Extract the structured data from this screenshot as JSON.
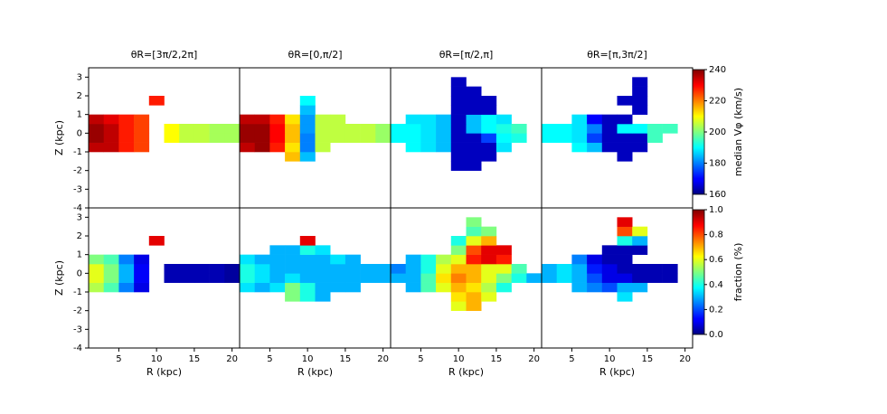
{
  "chart_data": [
    {
      "type": "heatmap",
      "title": "θR=[3π/2,2π]",
      "ylabel": "Z (kpc)",
      "xlim": [
        1,
        21
      ],
      "ylim": [
        -4,
        3.5
      ],
      "yticks": [
        -4,
        -3,
        -2,
        -1,
        0,
        1,
        2,
        3
      ],
      "r_edges": [
        1,
        3,
        5,
        7,
        9,
        11,
        13,
        15,
        17,
        19,
        21
      ],
      "z_edges": [
        -2,
        -1.5,
        -1,
        -0.5,
        0,
        0.5,
        1,
        1.5,
        2,
        2.5,
        3
      ],
      "values": [
        [
          null,
          null,
          null,
          null,
          null,
          null,
          null,
          null,
          null,
          null
        ],
        [
          null,
          null,
          null,
          null,
          null,
          null,
          null,
          null,
          null,
          null
        ],
        [
          235,
          235,
          228,
          225,
          null,
          null,
          null,
          null,
          null,
          null
        ],
        [
          238,
          235,
          228,
          225,
          null,
          210,
          205,
          205,
          203,
          203
        ],
        [
          238,
          235,
          228,
          225,
          null,
          210,
          205,
          205,
          203,
          203
        ],
        [
          235,
          232,
          228,
          225,
          null,
          null,
          null,
          null,
          null,
          null
        ],
        [
          null,
          null,
          null,
          null,
          null,
          null,
          null,
          null,
          null,
          null
        ],
        [
          null,
          null,
          null,
          null,
          228,
          null,
          null,
          null,
          null,
          null
        ],
        [
          null,
          null,
          null,
          null,
          null,
          null,
          null,
          null,
          null,
          null
        ],
        [
          null,
          null,
          null,
          null,
          null,
          null,
          null,
          null,
          null,
          null
        ]
      ]
    },
    {
      "type": "heatmap",
      "title": "θR=[0,π/2]",
      "xlim": [
        1,
        21
      ],
      "ylim": [
        -4,
        3.5
      ],
      "r_edges": [
        1,
        3,
        5,
        7,
        9,
        11,
        13,
        15,
        17,
        19,
        21
      ],
      "z_edges": [
        -2,
        -1.5,
        -1,
        -0.5,
        0,
        0.5,
        1,
        1.5,
        2,
        2.5,
        3
      ],
      "values": [
        [
          null,
          null,
          null,
          null,
          null,
          null,
          null,
          null,
          null,
          null
        ],
        [
          null,
          null,
          null,
          215,
          185,
          null,
          null,
          null,
          null,
          null
        ],
        [
          235,
          238,
          228,
          212,
          180,
          205,
          null,
          null,
          null,
          null
        ],
        [
          238,
          238,
          230,
          215,
          180,
          205,
          205,
          205,
          205,
          202
        ],
        [
          238,
          238,
          230,
          215,
          182,
          205,
          205,
          205,
          205,
          202
        ],
        [
          235,
          235,
          228,
          212,
          182,
          205,
          205,
          null,
          null,
          null
        ],
        [
          null,
          null,
          null,
          null,
          185,
          null,
          null,
          null,
          null,
          null
        ],
        [
          null,
          null,
          null,
          null,
          190,
          null,
          null,
          null,
          null,
          null
        ],
        [
          null,
          null,
          null,
          null,
          null,
          null,
          null,
          null,
          null,
          null
        ],
        [
          null,
          null,
          null,
          null,
          null,
          null,
          null,
          null,
          null,
          null
        ]
      ]
    },
    {
      "type": "heatmap",
      "title": "θR=[π/2,π]",
      "xlim": [
        1,
        21
      ],
      "ylim": [
        -4,
        3.5
      ],
      "r_edges": [
        1,
        3,
        5,
        7,
        9,
        11,
        13,
        15,
        17,
        19,
        21
      ],
      "z_edges": [
        -2,
        -1.5,
        -1,
        -0.5,
        0,
        0.5,
        1,
        1.5,
        2,
        2.5,
        3
      ],
      "values": [
        [
          null,
          null,
          null,
          null,
          165,
          165,
          null,
          null,
          null,
          null
        ],
        [
          null,
          null,
          null,
          null,
          165,
          165,
          165,
          null,
          null,
          null
        ],
        [
          null,
          190,
          188,
          185,
          165,
          165,
          165,
          188,
          null,
          null
        ],
        [
          190,
          190,
          188,
          185,
          165,
          165,
          175,
          190,
          192,
          null
        ],
        [
          190,
          190,
          188,
          185,
          165,
          185,
          190,
          192,
          195,
          null
        ],
        [
          null,
          188,
          188,
          185,
          165,
          185,
          190,
          188,
          null,
          null
        ],
        [
          null,
          null,
          null,
          null,
          165,
          165,
          165,
          null,
          null,
          null
        ],
        [
          null,
          null,
          null,
          null,
          165,
          165,
          165,
          null,
          null,
          null
        ],
        [
          null,
          null,
          null,
          null,
          165,
          165,
          null,
          null,
          null,
          null
        ],
        [
          null,
          null,
          null,
          null,
          165,
          null,
          null,
          null,
          null,
          null
        ]
      ]
    },
    {
      "type": "heatmap",
      "title": "θR=[π,3π/2]",
      "xlim": [
        1,
        21
      ],
      "ylim": [
        -4,
        3.5
      ],
      "r_edges": [
        1,
        3,
        5,
        7,
        9,
        11,
        13,
        15,
        17,
        19,
        21
      ],
      "z_edges": [
        -2,
        -1.5,
        -1,
        -0.5,
        0,
        0.5,
        1,
        1.5,
        2,
        2.5,
        3
      ],
      "values": [
        [
          null,
          null,
          null,
          null,
          null,
          null,
          null,
          null,
          null,
          null
        ],
        [
          null,
          null,
          null,
          null,
          null,
          165,
          null,
          null,
          null,
          null
        ],
        [
          null,
          null,
          190,
          185,
          165,
          165,
          165,
          null,
          null,
          null
        ],
        [
          190,
          190,
          188,
          175,
          165,
          165,
          165,
          195,
          null,
          null
        ],
        [
          190,
          190,
          188,
          180,
          165,
          190,
          190,
          195,
          195,
          null
        ],
        [
          null,
          null,
          188,
          170,
          165,
          165,
          null,
          null,
          null,
          null
        ],
        [
          null,
          null,
          null,
          null,
          null,
          null,
          165,
          null,
          null,
          null
        ],
        [
          null,
          null,
          null,
          null,
          null,
          165,
          165,
          null,
          null,
          null
        ],
        [
          null,
          null,
          null,
          null,
          null,
          null,
          165,
          null,
          null,
          null
        ],
        [
          null,
          null,
          null,
          null,
          null,
          null,
          165,
          null,
          null,
          null
        ]
      ],
      "colorbar": {
        "label": "median Vφ (km/s)",
        "lim": [
          160,
          240
        ],
        "ticks": [
          160,
          180,
          200,
          220,
          240
        ]
      }
    },
    {
      "type": "heatmap",
      "xlabel": "R (kpc)",
      "ylabel": "Z (kpc)",
      "xlim": [
        1,
        21
      ],
      "ylim": [
        -4,
        3.5
      ],
      "xticks": [
        5,
        10,
        15,
        20
      ],
      "yticks": [
        -4,
        -3,
        -2,
        -1,
        0,
        1,
        2,
        3
      ],
      "r_edges": [
        1,
        3,
        5,
        7,
        9,
        11,
        13,
        15,
        17,
        19,
        21
      ],
      "z_edges": [
        -2,
        -1.5,
        -1,
        -0.5,
        0,
        0.5,
        1,
        1.5,
        2,
        2.5,
        3
      ],
      "values": [
        [
          null,
          null,
          null,
          null,
          null,
          null,
          null,
          null,
          null,
          null
        ],
        [
          null,
          null,
          null,
          null,
          null,
          null,
          null,
          null,
          null,
          null
        ],
        [
          0.55,
          0.45,
          0.25,
          0.1,
          null,
          null,
          null,
          null,
          null,
          null
        ],
        [
          0.6,
          0.5,
          0.3,
          0.12,
          null,
          0.05,
          0.05,
          0.05,
          0.05,
          0.03
        ],
        [
          0.6,
          0.5,
          0.3,
          0.12,
          null,
          0.05,
          0.05,
          0.05,
          0.05,
          0.03
        ],
        [
          0.5,
          0.45,
          0.25,
          0.1,
          null,
          null,
          null,
          null,
          null,
          null
        ],
        [
          null,
          null,
          null,
          null,
          null,
          null,
          null,
          null,
          null,
          null
        ],
        [
          null,
          null,
          null,
          null,
          0.9,
          null,
          null,
          null,
          null,
          null
        ],
        [
          null,
          null,
          null,
          null,
          null,
          null,
          null,
          null,
          null,
          null
        ],
        [
          null,
          null,
          null,
          null,
          null,
          null,
          null,
          null,
          null,
          null
        ]
      ]
    },
    {
      "type": "heatmap",
      "xlabel": "R (kpc)",
      "xlim": [
        1,
        21
      ],
      "ylim": [
        -4,
        3.5
      ],
      "xticks": [
        5,
        10,
        15,
        20
      ],
      "r_edges": [
        1,
        3,
        5,
        7,
        9,
        11,
        13,
        15,
        17,
        19,
        21
      ],
      "z_edges": [
        -2,
        -1.5,
        -1,
        -0.5,
        0,
        0.5,
        1,
        1.5,
        2,
        2.5,
        3
      ],
      "values": [
        [
          null,
          null,
          null,
          null,
          null,
          null,
          null,
          null,
          null,
          null
        ],
        [
          null,
          null,
          null,
          0.5,
          0.4,
          0.3,
          null,
          null,
          null,
          null
        ],
        [
          0.35,
          0.3,
          0.35,
          0.5,
          0.4,
          0.3,
          0.3,
          0.3,
          null,
          null
        ],
        [
          0.4,
          0.35,
          0.3,
          0.35,
          0.3,
          0.3,
          0.3,
          0.3,
          0.3,
          0.3
        ],
        [
          0.4,
          0.35,
          0.3,
          0.3,
          0.3,
          0.3,
          0.3,
          0.3,
          0.3,
          0.3
        ],
        [
          0.35,
          0.3,
          0.3,
          0.3,
          0.3,
          0.3,
          0.35,
          0.3,
          null,
          null
        ],
        [
          null,
          null,
          0.3,
          0.3,
          0.4,
          0.35,
          null,
          null,
          null,
          null
        ],
        [
          null,
          null,
          null,
          null,
          0.9,
          null,
          null,
          null,
          null,
          null
        ],
        [
          null,
          null,
          null,
          null,
          null,
          null,
          null,
          null,
          null,
          null
        ],
        [
          null,
          null,
          null,
          null,
          null,
          null,
          null,
          null,
          null,
          null
        ]
      ]
    },
    {
      "type": "heatmap",
      "xlabel": "R (kpc)",
      "xlim": [
        1,
        21
      ],
      "ylim": [
        -4,
        3.5
      ],
      "xticks": [
        5,
        10,
        15,
        20
      ],
      "r_edges": [
        1,
        3,
        5,
        7,
        9,
        11,
        13,
        15,
        17,
        19,
        21
      ],
      "z_edges": [
        -2,
        -1.5,
        -1,
        -0.5,
        0,
        0.5,
        1,
        1.5,
        2,
        2.5,
        3
      ],
      "values": [
        [
          null,
          null,
          null,
          null,
          0.6,
          0.7,
          null,
          null,
          null,
          null
        ],
        [
          null,
          null,
          null,
          null,
          0.65,
          0.7,
          0.6,
          null,
          null,
          null
        ],
        [
          null,
          0.3,
          0.45,
          0.6,
          0.7,
          0.65,
          0.55,
          0.4,
          null,
          null
        ],
        [
          0.3,
          0.3,
          0.45,
          0.65,
          0.75,
          0.7,
          0.6,
          0.5,
          0.4,
          0.3
        ],
        [
          0.25,
          0.3,
          0.4,
          0.6,
          0.7,
          0.7,
          0.6,
          0.6,
          0.45,
          null
        ],
        [
          null,
          0.3,
          0.4,
          0.55,
          0.6,
          0.85,
          0.9,
          0.85,
          null,
          null
        ],
        [
          null,
          null,
          null,
          null,
          0.5,
          0.8,
          0.9,
          0.9,
          null,
          null
        ],
        [
          null,
          null,
          null,
          null,
          0.4,
          0.6,
          0.7,
          null,
          null,
          null
        ],
        [
          null,
          null,
          null,
          null,
          null,
          0.45,
          0.5,
          null,
          null,
          null
        ],
        [
          null,
          null,
          null,
          null,
          null,
          0.5,
          null,
          null,
          null,
          null
        ]
      ]
    },
    {
      "type": "heatmap",
      "xlabel": "R (kpc)",
      "xlim": [
        1,
        21
      ],
      "ylim": [
        -4,
        3.5
      ],
      "xticks": [
        5,
        10,
        15,
        20
      ],
      "r_edges": [
        1,
        3,
        5,
        7,
        9,
        11,
        13,
        15,
        17,
        19,
        21
      ],
      "z_edges": [
        -2,
        -1.5,
        -1,
        -0.5,
        0,
        0.5,
        1,
        1.5,
        2,
        2.5,
        3
      ],
      "values": [
        [
          null,
          null,
          null,
          null,
          null,
          null,
          null,
          null,
          null,
          null
        ],
        [
          null,
          null,
          null,
          null,
          null,
          0.35,
          null,
          null,
          null,
          null
        ],
        [
          null,
          null,
          0.3,
          0.25,
          0.2,
          0.3,
          0.3,
          null,
          null,
          null
        ],
        [
          0.3,
          0.35,
          0.3,
          0.2,
          0.1,
          0.1,
          0.05,
          0.05,
          0.05,
          null
        ],
        [
          0.3,
          0.35,
          0.3,
          0.15,
          0.1,
          0.05,
          0.05,
          0.05,
          0.05,
          null
        ],
        [
          null,
          null,
          0.25,
          0.1,
          0.05,
          0.05,
          null,
          null,
          null,
          null
        ],
        [
          null,
          null,
          null,
          null,
          0.05,
          0.05,
          0.05,
          null,
          null,
          null
        ],
        [
          null,
          null,
          null,
          null,
          null,
          0.4,
          0.3,
          null,
          null,
          null
        ],
        [
          null,
          null,
          null,
          null,
          null,
          0.8,
          0.6,
          null,
          null,
          null
        ],
        [
          null,
          null,
          null,
          null,
          null,
          0.9,
          null,
          null,
          null,
          null
        ]
      ],
      "colorbar": {
        "label": "fraction (%)",
        "lim": [
          0,
          1
        ],
        "ticks": [
          {
            "value": 0,
            "label": "0.0"
          },
          {
            "value": 0.2,
            "label": "0.2"
          },
          {
            "value": 0.4,
            "label": "0.4"
          },
          {
            "value": 0.6,
            "label": "0.6"
          },
          {
            "value": 0.8,
            "label": "0.8"
          },
          {
            "value": 1,
            "label": "1.0"
          }
        ]
      }
    }
  ]
}
